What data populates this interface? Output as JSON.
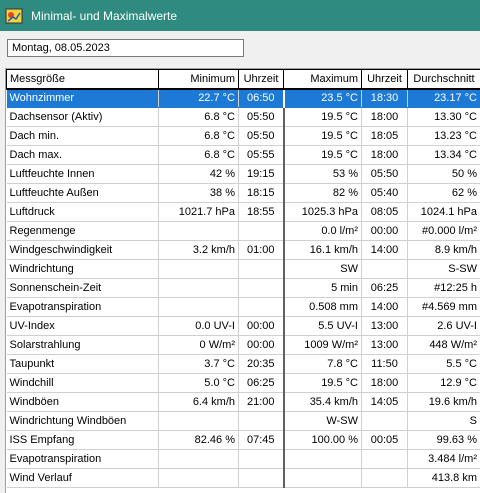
{
  "window": {
    "title": "Minimal- und Maximalwerte"
  },
  "date_field": {
    "value": "Montag, 08.05.2023"
  },
  "table": {
    "headers": [
      "Messgröße",
      "Minimum",
      "Uhrzeit",
      "Maximum",
      "Uhrzeit",
      "Durchschnitt"
    ],
    "rows": [
      {
        "name": "Wohnzimmer",
        "min": "22.7 °C",
        "min_time": "06:50",
        "max": "23.5 °C",
        "max_time": "18:30",
        "avg": "23.17 °C",
        "selected": true
      },
      {
        "name": "Dachsensor (Aktiv)",
        "min": "6.8 °C",
        "min_time": "05:50",
        "max": "19.5 °C",
        "max_time": "18:00",
        "avg": "13.30 °C"
      },
      {
        "name": "Dach min.",
        "min": "6.8 °C",
        "min_time": "05:50",
        "max": "19.5 °C",
        "max_time": "18:05",
        "avg": "13.23 °C"
      },
      {
        "name": "Dach max.",
        "min": "6.8 °C",
        "min_time": "05:55",
        "max": "19.5 °C",
        "max_time": "18:00",
        "avg": "13.34 °C"
      },
      {
        "name": "Luftfeuchte Innen",
        "min": "42 %",
        "min_time": "19:15",
        "max": "53 %",
        "max_time": "05:50",
        "avg": "50 %"
      },
      {
        "name": "Luftfeuchte Außen",
        "min": "38 %",
        "min_time": "18:15",
        "max": "82 %",
        "max_time": "05:40",
        "avg": "62 %"
      },
      {
        "name": "Luftdruck",
        "min": "1021.7 hPa",
        "min_time": "18:55",
        "max": "1025.3 hPa",
        "max_time": "08:05",
        "avg": "1024.1 hPa"
      },
      {
        "name": "Regenmenge",
        "min": "",
        "min_time": "",
        "max": "0.0 l/m²",
        "max_time": "00:00",
        "avg": "#0.000 l/m²"
      },
      {
        "name": "Windgeschwindigkeit",
        "min": "3.2 km/h",
        "min_time": "01:00",
        "max": "16.1 km/h",
        "max_time": "14:00",
        "avg": "8.9 km/h"
      },
      {
        "name": "Windrichtung",
        "min": "",
        "min_time": "",
        "max": "SW",
        "max_time": "",
        "avg": "S-SW"
      },
      {
        "name": "Sonnenschein-Zeit",
        "min": "",
        "min_time": "",
        "max": "5 min",
        "max_time": "06:25",
        "avg": "#12:25 h"
      },
      {
        "name": "Evapotranspiration",
        "min": "",
        "min_time": "",
        "max": "0.508 mm",
        "max_time": "14:00",
        "avg": "#4.569 mm"
      },
      {
        "name": "UV-Index",
        "min": "0.0 UV-I",
        "min_time": "00:00",
        "max": "5.5 UV-I",
        "max_time": "13:00",
        "avg": "2.6 UV-I"
      },
      {
        "name": "Solarstrahlung",
        "min": "0 W/m²",
        "min_time": "00:00",
        "max": "1009 W/m²",
        "max_time": "13:00",
        "avg": "448 W/m²"
      },
      {
        "name": "Taupunkt",
        "min": "3.7 °C",
        "min_time": "20:35",
        "max": "7.8 °C",
        "max_time": "11:50",
        "avg": "5.5 °C"
      },
      {
        "name": "Windchill",
        "min": "5.0 °C",
        "min_time": "06:25",
        "max": "19.5 °C",
        "max_time": "18:00",
        "avg": "12.9 °C"
      },
      {
        "name": "Windböen",
        "min": "6.4 km/h",
        "min_time": "21:00",
        "max": "35.4 km/h",
        "max_time": "14:05",
        "avg": "19.6 km/h"
      },
      {
        "name": "Windrichtung Windböen",
        "min": "",
        "min_time": "",
        "max": "W-SW",
        "max_time": "",
        "avg": "S"
      },
      {
        "name": "ISS Empfang",
        "min": "82.46 %",
        "min_time": "07:45",
        "max": "100.00 %",
        "max_time": "00:05",
        "avg": "99.63 %"
      },
      {
        "name": "Evapotranspiration",
        "min": "",
        "min_time": "",
        "max": "",
        "max_time": "",
        "avg": "3.484 l/m²"
      },
      {
        "name": "Wind Verlauf",
        "min": "",
        "min_time": "",
        "max": "",
        "max_time": "",
        "avg": "413.8 km"
      }
    ]
  },
  "colors": {
    "titlebar": "#2f8a80",
    "selection": "#1c79d6"
  }
}
